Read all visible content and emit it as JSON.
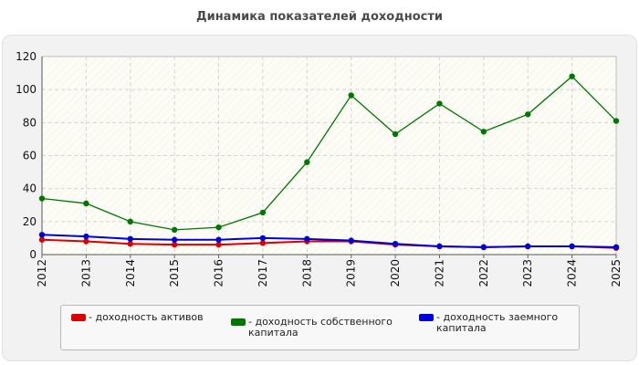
{
  "chart_data": {
    "type": "line",
    "title": "Динамика показателей доходности",
    "xlabel": "",
    "ylabel": "",
    "categories": [
      "2012",
      "2013",
      "2014",
      "2015",
      "2016",
      "2017",
      "2018",
      "2019",
      "2020",
      "2021",
      "2022",
      "2023",
      "2024",
      "2025"
    ],
    "ylim": [
      0,
      120
    ],
    "yticks": [
      "0",
      "20",
      "40",
      "60",
      "80",
      "100",
      "120"
    ],
    "grid": true,
    "legend_position": "bottom",
    "series": [
      {
        "name": "- доходность активов",
        "color": "#dd0000",
        "values": [
          9,
          8,
          6.5,
          6,
          6,
          7,
          8,
          8,
          6,
          5,
          4.5,
          5,
          5,
          4
        ]
      },
      {
        "name": "- доходность собственного капитала",
        "color": "#007700",
        "values": [
          34,
          31,
          20,
          15,
          16.5,
          25.5,
          56,
          96.5,
          73,
          91.5,
          74.5,
          85,
          108,
          81
        ]
      },
      {
        "name": "- доходность заемного капитала",
        "color": "#0000dd",
        "values": [
          12,
          11,
          9.5,
          9,
          9,
          10,
          9.5,
          8.5,
          6.5,
          5,
          4.5,
          5,
          5,
          4.5
        ]
      }
    ]
  }
}
